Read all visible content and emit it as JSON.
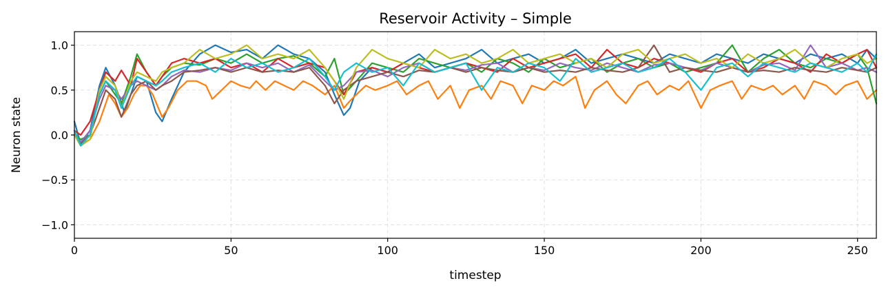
{
  "chart_data": {
    "type": "line",
    "title": "Reservoir Activity – Simple",
    "xlabel": "timestep",
    "ylabel": "Neuron state",
    "xlim": [
      0,
      256
    ],
    "ylim": [
      -1.15,
      1.15
    ],
    "xticks": [
      0,
      50,
      100,
      150,
      200,
      250
    ],
    "yticks": [
      -1.0,
      -0.5,
      0.0,
      0.5,
      1.0
    ],
    "xtick_labels": [
      "0",
      "50",
      "100",
      "150",
      "200",
      "250"
    ],
    "ytick_labels": [
      "−1.0",
      "−0.5",
      "0.0",
      "0.5",
      "1.0"
    ],
    "grid": true,
    "series": [
      {
        "color": "#1f77b4",
        "x": [
          0,
          2,
          5,
          8,
          10,
          13,
          16,
          18,
          20,
          23,
          26,
          28,
          31,
          35,
          40,
          45,
          50,
          55,
          60,
          65,
          70,
          75,
          80,
          83,
          86,
          88,
          91,
          95,
          100,
          105,
          110,
          115,
          120,
          125,
          130,
          135,
          140,
          145,
          150,
          155,
          160,
          165,
          170,
          175,
          180,
          185,
          190,
          195,
          200,
          205,
          210,
          215,
          220,
          225,
          230,
          235,
          240,
          245,
          250,
          253,
          256
        ],
        "y": [
          0.15,
          -0.1,
          0.05,
          0.55,
          0.75,
          0.55,
          0.25,
          0.45,
          0.65,
          0.6,
          0.25,
          0.15,
          0.4,
          0.7,
          0.9,
          1.0,
          0.92,
          0.95,
          0.85,
          1.0,
          0.9,
          0.85,
          0.7,
          0.45,
          0.22,
          0.3,
          0.6,
          0.75,
          0.7,
          0.8,
          0.9,
          0.75,
          0.8,
          0.85,
          0.95,
          0.8,
          0.85,
          0.9,
          0.8,
          0.85,
          0.95,
          0.8,
          0.85,
          0.9,
          0.85,
          0.8,
          0.9,
          0.85,
          0.8,
          0.9,
          0.85,
          0.8,
          0.9,
          0.85,
          0.8,
          0.9,
          0.85,
          0.9,
          0.8,
          0.95,
          0.85
        ]
      },
      {
        "color": "#ff7f0e",
        "x": [
          0,
          2,
          5,
          8,
          11,
          13,
          15,
          17,
          19,
          21,
          23,
          25,
          28,
          30,
          33,
          36,
          39,
          42,
          44,
          47,
          50,
          53,
          56,
          58,
          61,
          64,
          67,
          70,
          73,
          76,
          80,
          83,
          86,
          88,
          90,
          93,
          96,
          100,
          103,
          106,
          110,
          113,
          116,
          120,
          123,
          126,
          130,
          133,
          136,
          140,
          143,
          146,
          150,
          153,
          156,
          160,
          163,
          166,
          170,
          173,
          176,
          180,
          183,
          186,
          190,
          193,
          196,
          200,
          203,
          206,
          210,
          213,
          216,
          220,
          223,
          226,
          230,
          233,
          236,
          240,
          243,
          246,
          250,
          253,
          256
        ],
        "y": [
          0.05,
          -0.1,
          -0.05,
          0.15,
          0.45,
          0.35,
          0.2,
          0.3,
          0.45,
          0.55,
          0.55,
          0.45,
          0.2,
          0.3,
          0.5,
          0.6,
          0.6,
          0.55,
          0.4,
          0.5,
          0.6,
          0.55,
          0.52,
          0.6,
          0.5,
          0.6,
          0.55,
          0.5,
          0.6,
          0.55,
          0.45,
          0.55,
          0.3,
          0.38,
          0.45,
          0.55,
          0.5,
          0.55,
          0.6,
          0.45,
          0.55,
          0.6,
          0.4,
          0.55,
          0.3,
          0.5,
          0.55,
          0.4,
          0.6,
          0.55,
          0.35,
          0.55,
          0.5,
          0.6,
          0.55,
          0.65,
          0.3,
          0.5,
          0.6,
          0.45,
          0.35,
          0.55,
          0.6,
          0.45,
          0.55,
          0.5,
          0.6,
          0.3,
          0.5,
          0.55,
          0.6,
          0.4,
          0.55,
          0.5,
          0.55,
          0.45,
          0.55,
          0.4,
          0.6,
          0.55,
          0.45,
          0.55,
          0.6,
          0.4,
          0.5
        ]
      },
      {
        "color": "#2ca02c",
        "x": [
          0,
          2,
          5,
          8,
          10,
          13,
          15,
          18,
          20,
          23,
          26,
          28,
          31,
          35,
          40,
          45,
          50,
          55,
          60,
          65,
          70,
          75,
          80,
          83,
          86,
          90,
          95,
          100,
          105,
          110,
          115,
          120,
          125,
          130,
          135,
          140,
          145,
          150,
          155,
          160,
          165,
          170,
          175,
          180,
          185,
          190,
          195,
          200,
          205,
          210,
          215,
          220,
          225,
          230,
          235,
          240,
          245,
          250,
          253,
          256
        ],
        "y": [
          0.0,
          -0.05,
          0.0,
          0.45,
          0.6,
          0.45,
          0.35,
          0.65,
          0.9,
          0.7,
          0.55,
          0.65,
          0.75,
          0.8,
          0.78,
          0.85,
          0.8,
          0.9,
          0.8,
          0.85,
          0.88,
          0.8,
          0.65,
          0.85,
          0.45,
          0.6,
          0.8,
          0.75,
          0.7,
          0.85,
          0.8,
          0.75,
          0.8,
          0.7,
          0.85,
          0.8,
          0.7,
          0.85,
          0.75,
          0.8,
          0.85,
          0.7,
          0.8,
          0.85,
          0.75,
          0.8,
          0.7,
          0.75,
          0.8,
          1.0,
          0.7,
          0.85,
          0.95,
          0.8,
          0.75,
          0.85,
          0.8,
          0.9,
          0.75,
          0.35
        ]
      },
      {
        "color": "#d62728",
        "x": [
          0,
          2,
          5,
          8,
          10,
          13,
          15,
          18,
          20,
          23,
          26,
          28,
          31,
          35,
          40,
          45,
          50,
          55,
          60,
          65,
          70,
          75,
          80,
          83,
          86,
          90,
          95,
          100,
          105,
          110,
          115,
          120,
          125,
          130,
          135,
          140,
          145,
          150,
          155,
          160,
          165,
          170,
          175,
          180,
          185,
          190,
          195,
          200,
          205,
          210,
          215,
          220,
          225,
          230,
          235,
          240,
          245,
          250,
          253,
          256
        ],
        "y": [
          0.05,
          0.0,
          0.15,
          0.5,
          0.7,
          0.6,
          0.72,
          0.55,
          0.85,
          0.7,
          0.55,
          0.65,
          0.8,
          0.85,
          0.8,
          0.85,
          0.75,
          0.8,
          0.7,
          0.85,
          0.75,
          0.8,
          0.75,
          0.6,
          0.45,
          0.7,
          0.75,
          0.7,
          0.8,
          0.75,
          0.7,
          0.75,
          0.8,
          0.75,
          0.7,
          0.85,
          0.75,
          0.8,
          0.85,
          0.9,
          0.75,
          0.95,
          0.8,
          0.75,
          0.85,
          0.8,
          0.75,
          0.7,
          0.8,
          0.85,
          0.7,
          0.75,
          0.85,
          0.8,
          0.7,
          0.9,
          0.8,
          0.9,
          0.95,
          0.75
        ]
      },
      {
        "color": "#9467bd",
        "x": [
          0,
          2,
          5,
          8,
          10,
          13,
          15,
          18,
          20,
          23,
          26,
          28,
          31,
          35,
          40,
          45,
          50,
          55,
          60,
          65,
          70,
          75,
          80,
          83,
          86,
          90,
          95,
          100,
          105,
          110,
          115,
          120,
          125,
          130,
          135,
          140,
          145,
          150,
          155,
          160,
          165,
          170,
          175,
          180,
          185,
          190,
          195,
          200,
          205,
          210,
          215,
          220,
          225,
          230,
          235,
          240,
          245,
          250,
          253,
          256
        ],
        "y": [
          0.0,
          -0.08,
          0.05,
          0.4,
          0.55,
          0.5,
          0.4,
          0.55,
          0.6,
          0.55,
          0.5,
          0.55,
          0.65,
          0.72,
          0.7,
          0.75,
          0.72,
          0.8,
          0.75,
          0.8,
          0.7,
          0.78,
          0.6,
          0.5,
          0.55,
          0.7,
          0.72,
          0.65,
          0.75,
          0.8,
          0.7,
          0.75,
          0.72,
          0.78,
          0.8,
          0.7,
          0.75,
          0.72,
          0.8,
          0.75,
          0.72,
          0.8,
          0.75,
          0.7,
          0.78,
          0.8,
          0.75,
          0.72,
          0.8,
          0.75,
          0.7,
          0.78,
          0.8,
          0.72,
          1.0,
          0.75,
          0.8,
          0.72,
          0.75,
          0.7
        ]
      },
      {
        "color": "#8c564b",
        "x": [
          0,
          2,
          5,
          8,
          10,
          13,
          15,
          18,
          20,
          23,
          26,
          28,
          31,
          35,
          40,
          45,
          50,
          55,
          60,
          65,
          70,
          75,
          80,
          83,
          86,
          90,
          95,
          100,
          105,
          110,
          115,
          120,
          125,
          130,
          135,
          140,
          145,
          150,
          155,
          160,
          165,
          170,
          175,
          180,
          185,
          190,
          195,
          200,
          205,
          210,
          215,
          220,
          225,
          230,
          235,
          240,
          245,
          250,
          253,
          256
        ],
        "y": [
          0.0,
          -0.1,
          0.0,
          0.3,
          0.5,
          0.4,
          0.2,
          0.45,
          0.55,
          0.6,
          0.5,
          0.55,
          0.6,
          0.7,
          0.72,
          0.75,
          0.7,
          0.75,
          0.7,
          0.72,
          0.7,
          0.75,
          0.55,
          0.35,
          0.5,
          0.6,
          0.65,
          0.7,
          0.65,
          0.72,
          0.7,
          0.75,
          0.7,
          0.75,
          0.72,
          0.7,
          0.75,
          0.7,
          0.72,
          0.7,
          0.75,
          0.72,
          0.7,
          0.75,
          1.0,
          0.7,
          0.75,
          0.72,
          0.7,
          0.75,
          0.7,
          0.72,
          0.7,
          0.75,
          0.72,
          0.7,
          0.75,
          0.72,
          0.7,
          0.75
        ]
      },
      {
        "color": "#bcbd22",
        "x": [
          0,
          2,
          5,
          8,
          10,
          13,
          15,
          18,
          20,
          23,
          26,
          28,
          31,
          35,
          40,
          45,
          50,
          55,
          60,
          65,
          70,
          75,
          80,
          83,
          86,
          90,
          95,
          100,
          105,
          110,
          115,
          120,
          125,
          130,
          135,
          140,
          145,
          150,
          155,
          160,
          165,
          170,
          175,
          180,
          185,
          190,
          195,
          200,
          205,
          210,
          215,
          220,
          225,
          230,
          235,
          240,
          245,
          250,
          253,
          256
        ],
        "y": [
          0.0,
          -0.12,
          -0.05,
          0.5,
          0.65,
          0.55,
          0.3,
          0.6,
          0.7,
          0.65,
          0.6,
          0.7,
          0.75,
          0.8,
          0.95,
          0.85,
          0.9,
          1.0,
          0.85,
          0.9,
          0.85,
          0.95,
          0.75,
          0.6,
          0.4,
          0.75,
          0.95,
          0.85,
          0.8,
          0.75,
          0.95,
          0.85,
          0.9,
          0.8,
          0.85,
          0.95,
          0.8,
          0.85,
          0.9,
          0.8,
          0.85,
          0.75,
          0.9,
          0.95,
          0.8,
          0.85,
          0.9,
          0.8,
          0.85,
          0.75,
          0.9,
          0.8,
          0.85,
          0.95,
          0.8,
          0.75,
          0.85,
          0.9,
          0.8,
          0.85
        ]
      },
      {
        "color": "#17becf",
        "x": [
          0,
          2,
          5,
          8,
          10,
          13,
          15,
          18,
          20,
          23,
          26,
          28,
          31,
          35,
          40,
          45,
          50,
          55,
          60,
          65,
          70,
          75,
          80,
          83,
          86,
          90,
          95,
          100,
          105,
          110,
          115,
          120,
          125,
          130,
          135,
          140,
          145,
          150,
          155,
          160,
          165,
          170,
          175,
          180,
          185,
          190,
          195,
          200,
          205,
          210,
          215,
          220,
          225,
          230,
          235,
          240,
          245,
          250,
          253,
          256
        ],
        "y": [
          0.05,
          -0.12,
          0.0,
          0.45,
          0.6,
          0.5,
          0.3,
          0.55,
          0.65,
          0.6,
          0.55,
          0.6,
          0.7,
          0.75,
          0.8,
          0.7,
          0.85,
          0.75,
          0.8,
          0.7,
          0.75,
          0.85,
          0.65,
          0.5,
          0.7,
          0.8,
          0.7,
          0.75,
          0.55,
          0.8,
          0.7,
          0.75,
          0.8,
          0.5,
          0.75,
          0.7,
          0.8,
          0.75,
          0.6,
          0.85,
          0.7,
          0.75,
          0.8,
          0.7,
          0.75,
          0.85,
          0.7,
          0.5,
          0.75,
          0.8,
          0.65,
          0.8,
          0.75,
          0.7,
          0.8,
          0.75,
          0.7,
          0.8,
          0.7,
          0.9
        ]
      }
    ]
  }
}
